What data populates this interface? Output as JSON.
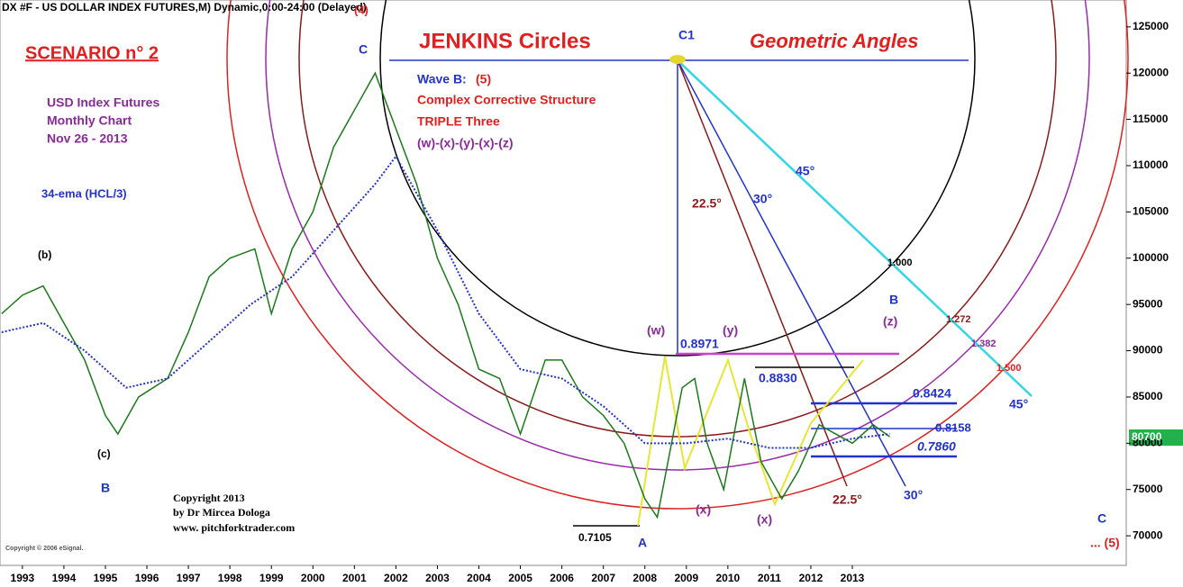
{
  "chart_data": {
    "type": "line",
    "title": "DX #F - US DOLLAR INDEX FUTURES,M) Dynamic,0:00-24:00 (Delayed)",
    "xlim": [
      1992.46,
      2019.6
    ],
    "ylim": [
      66800,
      127900
    ],
    "xticks": [
      1993,
      1994,
      1995,
      1996,
      1997,
      1998,
      1999,
      2000,
      2001,
      2002,
      2003,
      2004,
      2005,
      2006,
      2007,
      2008,
      2009,
      2010,
      2011,
      2012,
      2013
    ],
    "yticks": [
      70000,
      75000,
      80000,
      85000,
      90000,
      95000,
      100000,
      105000,
      110000,
      115000,
      120000,
      125000
    ],
    "last_price": 80700,
    "series": [
      {
        "name": "price",
        "color": "#1a7a1a",
        "x": [
          1992.5,
          1993,
          1993.5,
          1994,
          1994.5,
          1995,
          1995.3,
          1995.8,
          1996.5,
          1997,
          1997.5,
          1998,
          1998.6,
          1999,
          1999.5,
          2000,
          2000.5,
          2001,
          2001.5,
          2002,
          2002.5,
          2003,
          2003.5,
          2004,
          2004.5,
          2005,
          2005.6,
          2006,
          2006.5,
          2007,
          2007.5,
          2008,
          2008.3,
          2008.9,
          2009.2,
          2009.5,
          2009.9,
          2010.4,
          2010.8,
          2011.3,
          2011.7,
          2012.2,
          2012.6,
          2013,
          2013.5,
          2013.9
        ],
        "values": [
          94000,
          96000,
          97000,
          93000,
          89000,
          83000,
          81000,
          85000,
          87000,
          92000,
          98000,
          100000,
          101000,
          94000,
          101000,
          105000,
          112000,
          116000,
          120000,
          114000,
          108000,
          100000,
          95000,
          88000,
          87000,
          81000,
          89000,
          89000,
          85000,
          83000,
          80000,
          74000,
          72000,
          86000,
          87000,
          80000,
          75000,
          87000,
          78000,
          74000,
          77000,
          82000,
          81000,
          80000,
          82000,
          80700
        ]
      },
      {
        "name": "34-ema (HCL/3)",
        "color": "#2233cc",
        "x": [
          1992.5,
          1993.5,
          1994.5,
          1995.5,
          1996.5,
          1997.5,
          1998.5,
          1999.5,
          2000.5,
          2001.5,
          2002,
          2003,
          2004,
          2005,
          2006,
          2007,
          2008,
          2009,
          2010,
          2011,
          2012,
          2013,
          2013.9
        ],
        "values": [
          92000,
          93000,
          90000,
          86000,
          87000,
          91000,
          95000,
          98000,
          103000,
          108000,
          111000,
          103000,
          94000,
          88000,
          87000,
          84000,
          80000,
          80000,
          80500,
          79500,
          79500,
          80500,
          81000
        ]
      }
    ],
    "annotations": [
      {
        "text": "SCENARIO n° 2",
        "color": "#e02020"
      },
      {
        "text": "USD Index Futures",
        "color": "#8a2a9a"
      },
      {
        "text": "Monthly Chart",
        "color": "#8a2a9a"
      },
      {
        "text": "Nov 26 - 2013",
        "color": "#8a2a9a"
      },
      {
        "text": "34-ema (HCL/3)",
        "color": "#2233cc"
      },
      {
        "text": "JENKINS Circles",
        "color": "#e02020"
      },
      {
        "text": "Geometric Angles",
        "color": "#e02020"
      },
      {
        "text": "C1",
        "color": "#2233cc"
      },
      {
        "text": "Wave B:",
        "color": "#2233cc"
      },
      {
        "text": "(5)",
        "color": "#e02020"
      },
      {
        "text": "Complex Corrective Structure",
        "color": "#e02020"
      },
      {
        "text": "TRIPLE Three",
        "color": "#e02020"
      },
      {
        "text": "(w)-(x)-(y)-(x)-(z)",
        "color": "#8a2a9a"
      },
      {
        "text": "(4)",
        "color": "#e02020"
      },
      {
        "text": "C",
        "color": "#2233cc"
      },
      {
        "text": "(b)",
        "color": "#000000"
      },
      {
        "text": "(c)",
        "color": "#000000"
      },
      {
        "text": "B",
        "color": "#2233cc"
      },
      {
        "text": "45°",
        "color": "#2233cc"
      },
      {
        "text": "30°",
        "color": "#2233cc"
      },
      {
        "text": "22.5°",
        "color": "#8b1a1a"
      },
      {
        "text": "1.000",
        "color": "#000000"
      },
      {
        "text": "B",
        "color": "#2233cc"
      },
      {
        "text": "(z)",
        "color": "#8a2a9a"
      },
      {
        "text": "1.272",
        "color": "#8b1a1a"
      },
      {
        "text": "1.382",
        "color": "#8a2a9a"
      },
      {
        "text": "1.500",
        "color": "#e02020"
      },
      {
        "text": "(w)",
        "color": "#8a2a9a"
      },
      {
        "text": "(y)",
        "color": "#8a2a9a"
      },
      {
        "text": "0.8971",
        "color": "#2233cc"
      },
      {
        "text": "0.8830",
        "color": "#2233cc"
      },
      {
        "text": "0.8424",
        "color": "#2233cc"
      },
      {
        "text": "0.8158",
        "color": "#2233cc"
      },
      {
        "text": "0.7860",
        "color": "#2233cc"
      },
      {
        "text": "45°",
        "color": "#2233cc"
      },
      {
        "text": "22.5°",
        "color": "#8b1a1a"
      },
      {
        "text": "30°",
        "color": "#2233cc"
      },
      {
        "text": "(x)",
        "color": "#8a2a9a"
      },
      {
        "text": "(x)",
        "color": "#8a2a9a"
      },
      {
        "text": "0.7105",
        "color": "#000000"
      },
      {
        "text": "A",
        "color": "#2233cc"
      },
      {
        "text": "C",
        "color": "#2233cc"
      },
      {
        "text": "... (5)",
        "color": "#e02020"
      },
      {
        "text": "Copyright 2013",
        "color": "#000000"
      },
      {
        "text": "by Dr Mircea Dologa",
        "color": "#000000"
      },
      {
        "text": "www. pitchforktrader.com",
        "color": "#000000"
      },
      {
        "text": "Copyright © 2006 eSignal.",
        "color": "#555555"
      }
    ]
  }
}
